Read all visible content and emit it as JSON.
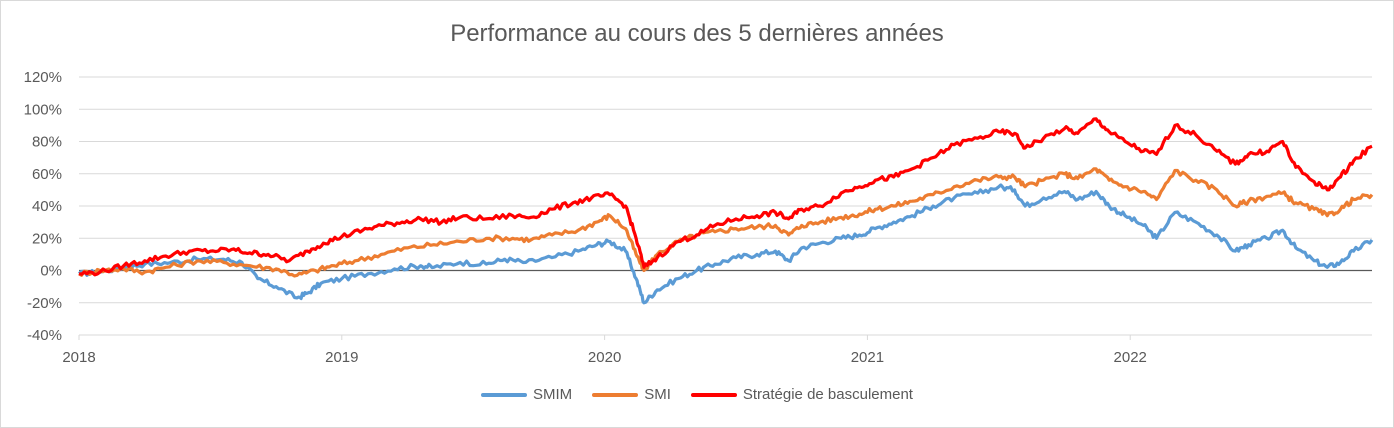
{
  "chart_data": {
    "type": "line",
    "title": "Performance au cours des 5 dernières années",
    "xlabel": "",
    "ylabel": "",
    "xlim": [
      2018.0,
      2022.92
    ],
    "ylim": [
      -40,
      120
    ],
    "x_ticks": [
      "2018",
      "2019",
      "2020",
      "2021",
      "2022"
    ],
    "y_ticks": [
      "120%",
      "100%",
      "80%",
      "60%",
      "40%",
      "20%",
      "0%",
      "-20%",
      "-40%"
    ],
    "grid": "horizontal",
    "legend_position": "bottom",
    "series": [
      {
        "name": "SMIM",
        "color": "#5b9bd5",
        "points": [
          [
            2018.0,
            -2
          ],
          [
            2018.08,
            -1
          ],
          [
            2018.17,
            2
          ],
          [
            2018.25,
            4
          ],
          [
            2018.35,
            5
          ],
          [
            2018.45,
            7
          ],
          [
            2018.55,
            7
          ],
          [
            2018.62,
            5
          ],
          [
            2018.68,
            -5
          ],
          [
            2018.75,
            -10
          ],
          [
            2018.83,
            -17
          ],
          [
            2018.87,
            -14
          ],
          [
            2018.92,
            -8
          ],
          [
            2019.0,
            -5
          ],
          [
            2019.1,
            -2
          ],
          [
            2019.2,
            1
          ],
          [
            2019.3,
            3
          ],
          [
            2019.35,
            2
          ],
          [
            2019.45,
            5
          ],
          [
            2019.55,
            4
          ],
          [
            2019.62,
            7
          ],
          [
            2019.7,
            5
          ],
          [
            2019.8,
            8
          ],
          [
            2019.9,
            12
          ],
          [
            2019.97,
            16
          ],
          [
            2020.02,
            18
          ],
          [
            2020.08,
            12
          ],
          [
            2020.12,
            -5
          ],
          [
            2020.15,
            -20
          ],
          [
            2020.2,
            -12
          ],
          [
            2020.28,
            -5
          ],
          [
            2020.35,
            0
          ],
          [
            2020.42,
            4
          ],
          [
            2020.5,
            8
          ],
          [
            2020.58,
            10
          ],
          [
            2020.65,
            12
          ],
          [
            2020.7,
            6
          ],
          [
            2020.75,
            14
          ],
          [
            2020.82,
            17
          ],
          [
            2020.9,
            20
          ],
          [
            2020.97,
            22
          ],
          [
            2021.03,
            26
          ],
          [
            2021.1,
            30
          ],
          [
            2021.17,
            34
          ],
          [
            2021.25,
            40
          ],
          [
            2021.33,
            45
          ],
          [
            2021.42,
            48
          ],
          [
            2021.5,
            52
          ],
          [
            2021.56,
            50
          ],
          [
            2021.6,
            40
          ],
          [
            2021.67,
            45
          ],
          [
            2021.75,
            49
          ],
          [
            2021.8,
            44
          ],
          [
            2021.87,
            49
          ],
          [
            2021.92,
            40
          ],
          [
            2021.98,
            34
          ],
          [
            2022.05,
            28
          ],
          [
            2022.1,
            20
          ],
          [
            2022.17,
            36
          ],
          [
            2022.25,
            30
          ],
          [
            2022.33,
            22
          ],
          [
            2022.4,
            12
          ],
          [
            2022.45,
            16
          ],
          [
            2022.52,
            20
          ],
          [
            2022.58,
            25
          ],
          [
            2022.63,
            14
          ],
          [
            2022.7,
            6
          ],
          [
            2022.75,
            2
          ],
          [
            2022.8,
            5
          ],
          [
            2022.85,
            12
          ],
          [
            2022.92,
            19
          ]
        ]
      },
      {
        "name": "SMI",
        "color": "#ed7d31",
        "points": [
          [
            2018.0,
            -2
          ],
          [
            2018.08,
            0
          ],
          [
            2018.17,
            1
          ],
          [
            2018.25,
            -1
          ],
          [
            2018.33,
            2
          ],
          [
            2018.45,
            6
          ],
          [
            2018.55,
            5
          ],
          [
            2018.65,
            3
          ],
          [
            2018.75,
            1
          ],
          [
            2018.83,
            -3
          ],
          [
            2018.9,
            0
          ],
          [
            2018.97,
            3
          ],
          [
            2019.05,
            6
          ],
          [
            2019.15,
            10
          ],
          [
            2019.25,
            14
          ],
          [
            2019.35,
            16
          ],
          [
            2019.45,
            18
          ],
          [
            2019.55,
            20
          ],
          [
            2019.65,
            20
          ],
          [
            2019.72,
            19
          ],
          [
            2019.8,
            22
          ],
          [
            2019.9,
            25
          ],
          [
            2019.97,
            30
          ],
          [
            2020.02,
            34
          ],
          [
            2020.08,
            26
          ],
          [
            2020.12,
            10
          ],
          [
            2020.15,
            0
          ],
          [
            2020.2,
            10
          ],
          [
            2020.28,
            18
          ],
          [
            2020.35,
            22
          ],
          [
            2020.42,
            24
          ],
          [
            2020.5,
            26
          ],
          [
            2020.58,
            27
          ],
          [
            2020.65,
            28
          ],
          [
            2020.7,
            22
          ],
          [
            2020.75,
            28
          ],
          [
            2020.82,
            30
          ],
          [
            2020.9,
            33
          ],
          [
            2020.97,
            35
          ],
          [
            2021.03,
            38
          ],
          [
            2021.1,
            40
          ],
          [
            2021.17,
            43
          ],
          [
            2021.25,
            47
          ],
          [
            2021.33,
            52
          ],
          [
            2021.42,
            56
          ],
          [
            2021.5,
            58
          ],
          [
            2021.56,
            58
          ],
          [
            2021.6,
            52
          ],
          [
            2021.67,
            56
          ],
          [
            2021.75,
            60
          ],
          [
            2021.8,
            57
          ],
          [
            2021.87,
            63
          ],
          [
            2021.92,
            56
          ],
          [
            2021.98,
            52
          ],
          [
            2022.05,
            49
          ],
          [
            2022.1,
            44
          ],
          [
            2022.17,
            62
          ],
          [
            2022.25,
            56
          ],
          [
            2022.33,
            50
          ],
          [
            2022.4,
            40
          ],
          [
            2022.45,
            43
          ],
          [
            2022.52,
            46
          ],
          [
            2022.58,
            48
          ],
          [
            2022.63,
            42
          ],
          [
            2022.7,
            38
          ],
          [
            2022.75,
            34
          ],
          [
            2022.8,
            38
          ],
          [
            2022.85,
            44
          ],
          [
            2022.92,
            47
          ]
        ]
      },
      {
        "name": "Stratégie de basculement",
        "color": "#ff0000",
        "points": [
          [
            2018.0,
            -2
          ],
          [
            2018.08,
            -1
          ],
          [
            2018.17,
            3
          ],
          [
            2018.25,
            6
          ],
          [
            2018.33,
            9
          ],
          [
            2018.42,
            12
          ],
          [
            2018.5,
            12
          ],
          [
            2018.58,
            13
          ],
          [
            2018.65,
            11
          ],
          [
            2018.72,
            10
          ],
          [
            2018.8,
            6
          ],
          [
            2018.87,
            12
          ],
          [
            2018.93,
            17
          ],
          [
            2019.0,
            21
          ],
          [
            2019.08,
            25
          ],
          [
            2019.15,
            28
          ],
          [
            2019.23,
            30
          ],
          [
            2019.3,
            32
          ],
          [
            2019.38,
            30
          ],
          [
            2019.45,
            33
          ],
          [
            2019.55,
            32
          ],
          [
            2019.65,
            34
          ],
          [
            2019.72,
            33
          ],
          [
            2019.8,
            38
          ],
          [
            2019.88,
            42
          ],
          [
            2019.95,
            45
          ],
          [
            2020.02,
            47
          ],
          [
            2020.08,
            40
          ],
          [
            2020.12,
            20
          ],
          [
            2020.15,
            2
          ],
          [
            2020.2,
            8
          ],
          [
            2020.28,
            18
          ],
          [
            2020.35,
            22
          ],
          [
            2020.42,
            28
          ],
          [
            2020.5,
            32
          ],
          [
            2020.58,
            34
          ],
          [
            2020.65,
            36
          ],
          [
            2020.7,
            32
          ],
          [
            2020.75,
            38
          ],
          [
            2020.82,
            40
          ],
          [
            2020.9,
            48
          ],
          [
            2020.97,
            52
          ],
          [
            2021.03,
            56
          ],
          [
            2021.1,
            58
          ],
          [
            2021.17,
            63
          ],
          [
            2021.25,
            70
          ],
          [
            2021.33,
            78
          ],
          [
            2021.42,
            82
          ],
          [
            2021.5,
            86
          ],
          [
            2021.56,
            85
          ],
          [
            2021.6,
            76
          ],
          [
            2021.67,
            82
          ],
          [
            2021.75,
            88
          ],
          [
            2021.8,
            85
          ],
          [
            2021.87,
            94
          ],
          [
            2021.92,
            86
          ],
          [
            2021.98,
            80
          ],
          [
            2022.05,
            74
          ],
          [
            2022.1,
            72
          ],
          [
            2022.17,
            90
          ],
          [
            2022.25,
            84
          ],
          [
            2022.33,
            74
          ],
          [
            2022.4,
            66
          ],
          [
            2022.45,
            72
          ],
          [
            2022.52,
            74
          ],
          [
            2022.58,
            80
          ],
          [
            2022.63,
            64
          ],
          [
            2022.7,
            55
          ],
          [
            2022.75,
            50
          ],
          [
            2022.8,
            58
          ],
          [
            2022.85,
            68
          ],
          [
            2022.92,
            77
          ]
        ]
      }
    ]
  }
}
